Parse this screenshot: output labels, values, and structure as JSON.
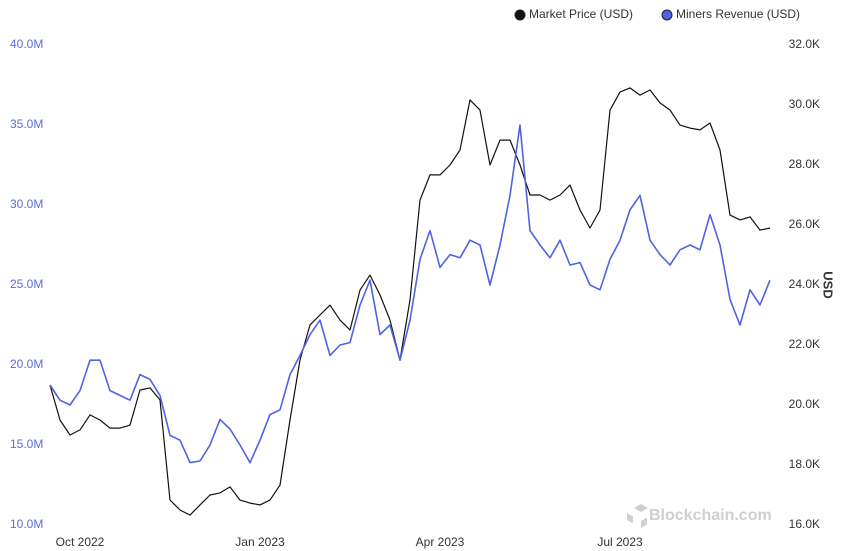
{
  "chart_data": {
    "type": "line",
    "legend": "top-right",
    "watermark": "Blockchain.com",
    "y2label": "USD",
    "categories": [
      null,
      null,
      null,
      "Oct 2022",
      null,
      null,
      null,
      null,
      null,
      null,
      null,
      null,
      null,
      null,
      null,
      null,
      null,
      null,
      null,
      null,
      null,
      "Jan 2023",
      null,
      null,
      null,
      null,
      null,
      null,
      null,
      null,
      null,
      null,
      null,
      null,
      null,
      null,
      null,
      null,
      null,
      "Apr 2023",
      null,
      null,
      null,
      null,
      null,
      null,
      null,
      null,
      null,
      null,
      null,
      null,
      null,
      null,
      null,
      null,
      null,
      "Jul 2023",
      null,
      null,
      null,
      null,
      null,
      null,
      null,
      null,
      null,
      null,
      null,
      null,
      null,
      null,
      null
    ],
    "series": [
      {
        "name": "Market Price (USD)",
        "color": "#111111",
        "axis": "y2",
        "values": [
          20.67,
          19.5,
          19.0,
          19.17,
          19.67,
          19.5,
          19.23,
          19.23,
          19.33,
          20.5,
          20.57,
          20.17,
          16.83,
          16.5,
          16.33,
          16.67,
          17.0,
          17.07,
          17.27,
          16.83,
          16.73,
          16.67,
          16.83,
          17.33,
          19.5,
          21.5,
          22.67,
          23.0,
          23.33,
          22.83,
          22.5,
          23.83,
          24.33,
          23.67,
          22.83,
          21.5,
          23.5,
          26.83,
          27.67,
          27.67,
          28.0,
          28.5,
          30.17,
          29.83,
          28.0,
          28.83,
          28.83,
          28.0,
          27.0,
          27.0,
          26.83,
          27.0,
          27.33,
          26.5,
          25.9,
          26.5,
          29.83,
          30.43,
          30.57,
          30.33,
          30.5,
          30.07,
          29.83,
          29.33,
          29.23,
          29.17,
          29.4,
          28.5,
          26.33,
          26.17,
          26.27,
          25.83,
          25.9
        ]
      },
      {
        "name": "Miners Revenue (USD)",
        "color": "#4f63e3",
        "values": [
          18.75,
          17.8,
          17.5,
          18.4,
          20.3,
          20.3,
          18.4,
          18.1,
          17.8,
          19.4,
          19.1,
          18.1,
          15.6,
          15.3,
          13.9,
          14.0,
          15.0,
          16.6,
          16.0,
          15.0,
          13.9,
          15.3,
          16.9,
          17.2,
          19.4,
          20.6,
          21.9,
          22.8,
          20.6,
          21.25,
          21.4,
          23.75,
          25.3,
          21.9,
          22.5,
          20.3,
          22.8,
          26.6,
          28.4,
          26.1,
          26.9,
          26.7,
          27.8,
          27.5,
          25.0,
          27.5,
          30.6,
          35.0,
          28.4,
          27.5,
          26.7,
          27.8,
          26.25,
          26.4,
          25.0,
          24.7,
          26.6,
          27.8,
          29.7,
          30.6,
          27.8,
          26.9,
          26.25,
          27.2,
          27.5,
          27.2,
          29.4,
          27.5,
          24.1,
          22.5,
          24.7,
          23.75,
          25.3
        ]
      }
    ],
    "ylim": [
      10,
      40
    ],
    "yticks": [
      {
        "value": 10,
        "label": "10.0M"
      },
      {
        "value": 15,
        "label": "15.0M"
      },
      {
        "value": 20,
        "label": "20.0M"
      },
      {
        "value": 25,
        "label": "25.0M"
      },
      {
        "value": 30,
        "label": "30.0M"
      },
      {
        "value": 35,
        "label": "35.0M"
      },
      {
        "value": 40,
        "label": "40.0M"
      }
    ],
    "y2lim": [
      16,
      32
    ],
    "y2ticks": [
      {
        "value": 16,
        "label": "16.0K"
      },
      {
        "value": 18,
        "label": "18.0K"
      },
      {
        "value": 20,
        "label": "20.0K"
      },
      {
        "value": 22,
        "label": "22.0K"
      },
      {
        "value": 24,
        "label": "24.0K"
      },
      {
        "value": 26,
        "label": "26.0K"
      },
      {
        "value": 28,
        "label": "28.0K"
      },
      {
        "value": 30,
        "label": "30.0K"
      },
      {
        "value": 32,
        "label": "32.0K"
      }
    ],
    "grid": false
  }
}
